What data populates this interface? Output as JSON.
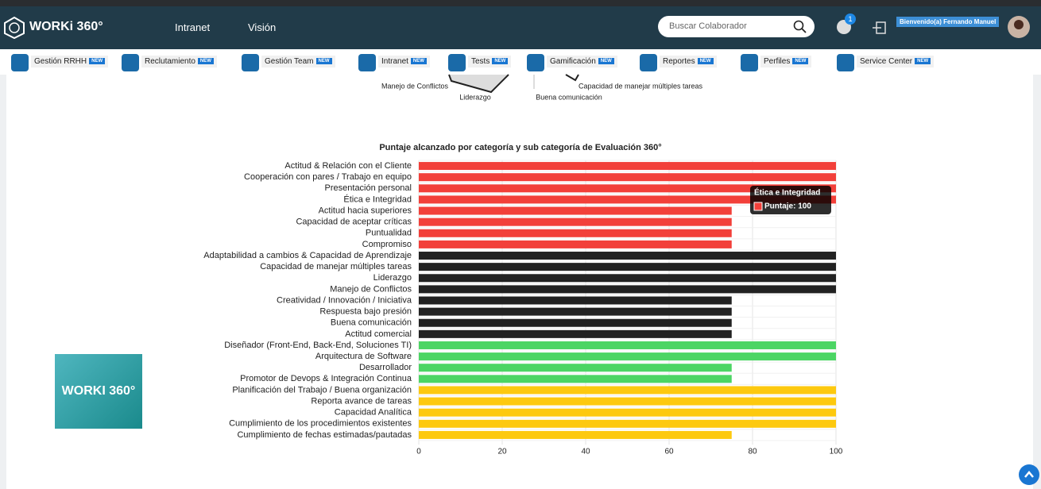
{
  "header": {
    "logo": "WORKi 360°",
    "nav": [
      "Intranet",
      "Visión"
    ],
    "search_placeholder": "Buscar Colaborador",
    "notifications": "1",
    "welcome": "Bienvenido(a) Fernando Manuel"
  },
  "menu": {
    "badge": "NEW",
    "items": [
      "Gestión RRHH",
      "Reclutamiento",
      "Gestión Team",
      "Intranet",
      "Tests",
      "Gamificación",
      "Reportes",
      "Perfiles",
      "Service Center"
    ]
  },
  "radar_labels": [
    "Manejo de Conflictos",
    "Liderazgo",
    "Buena comunicación",
    "Capacidad de manejar múltiples tareas"
  ],
  "logo_card": "WORKI 360°",
  "tooltip": {
    "title": "Ética e Integridad",
    "label": "Puntaje: 100"
  },
  "chart_data": {
    "type": "bar",
    "orientation": "horizontal",
    "title": "Puntaje alcanzado por categoría y sub categoría de Evaluación 360°",
    "categories": [
      "Actitud & Relación con el Cliente",
      "Cooperación con pares / Trabajo en equipo",
      "Presentación personal",
      "Ética e Integridad",
      "Actitud hacia superiores",
      "Capacidad de aceptar críticas",
      "Puntualidad",
      "Compromiso",
      "Adaptabilidad a cambios &  Capacidad de Aprendizaje",
      "Capacidad de manejar múltiples tareas",
      "Liderazgo",
      "Manejo de Conflictos",
      "Creatividad / Innovación / Iniciativa",
      "Respuesta bajo presión",
      "Buena comunicación",
      "Actitud comercial",
      "Diseñador (Front-End, Back-End, Soluciones TI)",
      "Arquitectura de Software",
      "Desarrollador",
      "Promotor de Devops & Integración Continua",
      "Planificación del Trabajo / Buena organización",
      "Reporta avance de tareas",
      "Capacidad Analítica",
      "Cumplimiento de los procedimientos existentes",
      "Cumplimiento de fechas estimadas/pautadas"
    ],
    "values": [
      100,
      100,
      100,
      100,
      75,
      75,
      75,
      75,
      100,
      100,
      100,
      100,
      75,
      75,
      75,
      75,
      100,
      100,
      75,
      75,
      100,
      100,
      100,
      100,
      75
    ],
    "colors": [
      "#f2403a",
      "#f2403a",
      "#f2403a",
      "#f2403a",
      "#f2403a",
      "#f2403a",
      "#f2403a",
      "#f2403a",
      "#222222",
      "#222222",
      "#222222",
      "#222222",
      "#222222",
      "#222222",
      "#222222",
      "#222222",
      "#4cd564",
      "#4cd564",
      "#4cd564",
      "#4cd564",
      "#fdc90f",
      "#fdc90f",
      "#fdc90f",
      "#fdc90f",
      "#fdc90f"
    ],
    "xlim": [
      0,
      100
    ],
    "xticks": [
      0,
      20,
      40,
      60,
      80,
      100
    ],
    "grid": true
  }
}
